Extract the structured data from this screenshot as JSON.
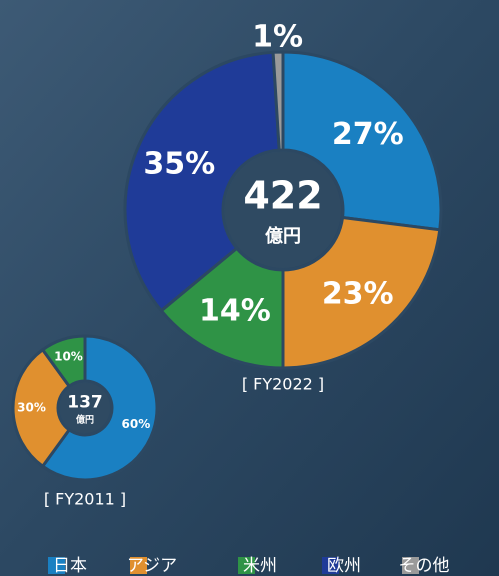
{
  "chart_data": [
    {
      "type": "pie",
      "title": "[ FY2022 ]",
      "total": 422,
      "unit": "億円",
      "categories": [
        "日本",
        "アジア",
        "米州",
        "欧州",
        "その他"
      ],
      "colors": [
        "#1a80c2",
        "#e0902f",
        "#2f9346",
        "#1f3b98",
        "#9a9a9a"
      ],
      "values": [
        27,
        23,
        14,
        35,
        1
      ],
      "value_labels": [
        "27%",
        "23%",
        "14%",
        "35%",
        "1%"
      ]
    },
    {
      "type": "pie",
      "title": "[ FY2011 ]",
      "total": 137,
      "unit": "億円",
      "categories": [
        "日本",
        "アジア",
        "米州"
      ],
      "colors": [
        "#1a80c2",
        "#e0902f",
        "#2f9346"
      ],
      "values": [
        60,
        30,
        10
      ],
      "value_labels": [
        "60%",
        "30%",
        "10%"
      ]
    }
  ]
}
